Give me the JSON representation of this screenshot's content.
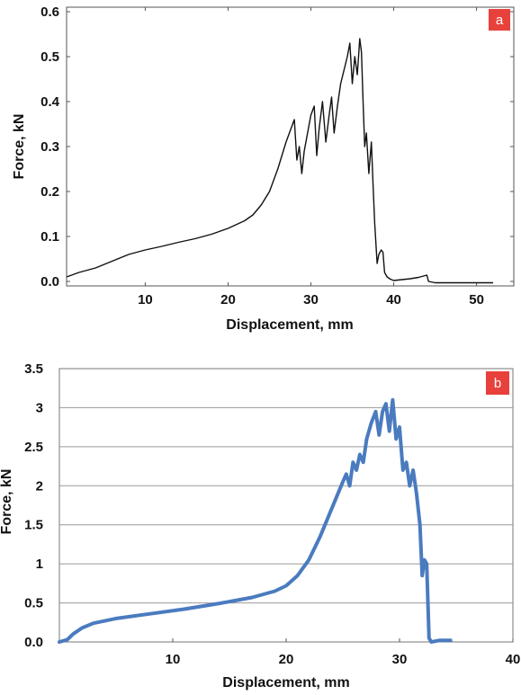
{
  "chart_data": [
    {
      "type": "line",
      "panel_label": "a",
      "xlabel": "Displacement, mm",
      "ylabel": "Force, kN",
      "xlim": [
        0.5,
        54.5
      ],
      "ylim": [
        -0.01,
        0.61
      ],
      "xticks": [
        10,
        20,
        30,
        40,
        50
      ],
      "yticks": [
        0.0,
        0.1,
        0.2,
        0.3,
        0.4,
        0.5,
        0.6
      ],
      "ytick_labels": [
        "0.0",
        "0.1",
        "0.2",
        "0.3",
        "0.4",
        "0.5",
        "0.6"
      ],
      "grid": false,
      "line_color": "#111111",
      "badge_color": "#e8413c",
      "series": [
        {
          "x": [
            0.5,
            2,
            4,
            6,
            8,
            10,
            12,
            14,
            16,
            18,
            20,
            22,
            23,
            24,
            25,
            26,
            27,
            27.6,
            28,
            28.3,
            28.6,
            28.9,
            29.2,
            29.6,
            30,
            30.4,
            30.7,
            31,
            31.4,
            31.8,
            32.2,
            32.5,
            32.8,
            33.2,
            33.6,
            34,
            34.4,
            34.7,
            35,
            35.3,
            35.6,
            35.9,
            36.1,
            36.3,
            36.5,
            36.7,
            37,
            37.3,
            37.5,
            37.7,
            38,
            38.2,
            38.5,
            38.7,
            38.9,
            39.2,
            39.6,
            40,
            41,
            42,
            43,
            44,
            44.2,
            45,
            48,
            50,
            52
          ],
          "y": [
            0.01,
            0.02,
            0.03,
            0.045,
            0.06,
            0.07,
            0.078,
            0.087,
            0.095,
            0.105,
            0.118,
            0.135,
            0.148,
            0.17,
            0.2,
            0.25,
            0.31,
            0.34,
            0.36,
            0.27,
            0.3,
            0.24,
            0.29,
            0.33,
            0.37,
            0.39,
            0.28,
            0.34,
            0.4,
            0.31,
            0.37,
            0.41,
            0.33,
            0.39,
            0.44,
            0.47,
            0.5,
            0.53,
            0.44,
            0.5,
            0.46,
            0.54,
            0.51,
            0.4,
            0.3,
            0.33,
            0.24,
            0.31,
            0.22,
            0.13,
            0.04,
            0.06,
            0.07,
            0.065,
            0.02,
            0.01,
            0.005,
            0.002,
            0.004,
            0.006,
            0.009,
            0.014,
            0.0,
            -0.003,
            -0.003,
            -0.003,
            -0.003
          ]
        }
      ]
    },
    {
      "type": "line",
      "panel_label": "b",
      "xlabel": "Displacement, mm",
      "ylabel": "Force, kN",
      "xlim": [
        0,
        40
      ],
      "ylim": [
        0,
        3.5
      ],
      "xticks": [
        10,
        20,
        30,
        40
      ],
      "yticks": [
        0,
        0.5,
        1,
        1.5,
        2,
        2.5,
        3,
        3.5
      ],
      "ytick_labels": [
        "0.0",
        "0.5",
        "1",
        "1.5",
        "2",
        "2.5",
        "3",
        "3.5"
      ],
      "grid": true,
      "line_color": "#4a7bbf",
      "badge_color": "#e8413c",
      "series": [
        {
          "x": [
            0,
            0.7,
            1.2,
            2,
            3,
            5,
            8,
            11,
            14,
            17,
            19,
            20,
            21,
            22,
            23,
            24,
            25,
            25.3,
            25.6,
            25.9,
            26.2,
            26.5,
            26.8,
            27.1,
            27.5,
            27.9,
            28.2,
            28.5,
            28.8,
            29.1,
            29.4,
            29.7,
            30,
            30.3,
            30.6,
            30.9,
            31.2,
            31.5,
            31.8,
            32,
            32.2,
            32.4,
            32.6,
            32.8,
            33.5,
            34.5
          ],
          "y": [
            0.0,
            0.03,
            0.1,
            0.18,
            0.24,
            0.3,
            0.36,
            0.42,
            0.49,
            0.57,
            0.65,
            0.72,
            0.85,
            1.05,
            1.35,
            1.7,
            2.05,
            2.15,
            2.0,
            2.3,
            2.2,
            2.4,
            2.3,
            2.6,
            2.8,
            2.95,
            2.65,
            2.95,
            3.05,
            2.7,
            3.1,
            2.6,
            2.75,
            2.2,
            2.3,
            2.0,
            2.2,
            1.9,
            1.5,
            0.85,
            1.05,
            1.0,
            0.05,
            0.0,
            0.02,
            0.02
          ]
        }
      ]
    }
  ]
}
